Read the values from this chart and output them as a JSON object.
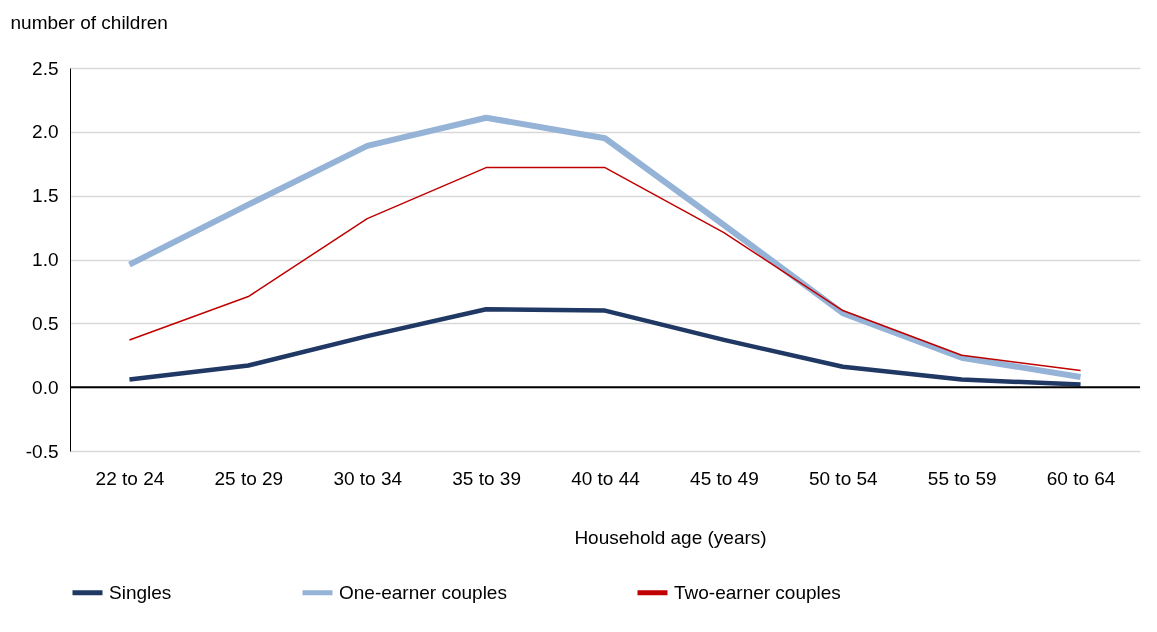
{
  "chart_data": {
    "type": "line",
    "ylabel": "number of children",
    "xlabel": "Household age (years)",
    "categories": [
      "22 to 24",
      "25 to 29",
      "30 to 34",
      "35 to 39",
      "40 to 44",
      "45 to 49",
      "50 to 54",
      "55 to 59",
      "60 to 64"
    ],
    "series": [
      {
        "name": "Singles",
        "color": "#1f3864",
        "values": [
          0.06,
          0.17,
          0.4,
          0.61,
          0.6,
          0.37,
          0.16,
          0.06,
          0.02
        ]
      },
      {
        "name": "One-earner couples",
        "color": "#95b3d7",
        "values": [
          0.96,
          1.43,
          1.89,
          2.11,
          1.95,
          1.27,
          0.58,
          0.23,
          0.08
        ]
      },
      {
        "name": "Two-earner couples",
        "color": "#c00000",
        "values": [
          0.37,
          0.71,
          1.32,
          1.72,
          1.72,
          1.21,
          0.6,
          0.25,
          0.13
        ]
      }
    ],
    "ylim": [
      -0.5,
      2.5
    ],
    "yticks": [
      {
        "value": -0.5,
        "label": "-0.5"
      },
      {
        "value": 0,
        "label": "0.0"
      },
      {
        "value": 0.5,
        "label": "0.5"
      },
      {
        "value": 1,
        "label": "1.0"
      },
      {
        "value": 1.5,
        "label": "1.5"
      },
      {
        "value": 2,
        "label": "2.0"
      },
      {
        "value": 2.5,
        "label": "2.5"
      }
    ],
    "grid": "y",
    "legend": "bottom",
    "marker": "none",
    "line_style": "solid",
    "ref_lines": [
      {
        "axis": "y",
        "value": 0,
        "color": "#000000"
      }
    ]
  }
}
